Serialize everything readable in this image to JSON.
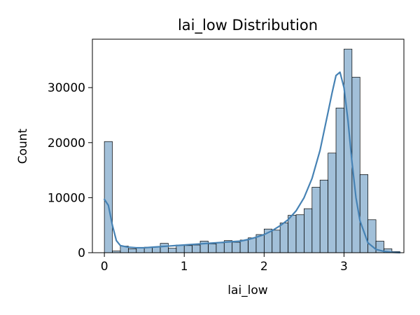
{
  "chart_data": {
    "type": "bar",
    "title": "lai_low Distribution",
    "xlabel": "lai_low",
    "ylabel": "Count",
    "xlim": [
      -0.15,
      3.75
    ],
    "ylim": [
      0,
      38800
    ],
    "xticks": [
      0,
      1,
      2,
      3
    ],
    "yticks": [
      0,
      10000,
      20000,
      30000
    ],
    "xtick_labels": [
      "0",
      "1",
      "2",
      "3"
    ],
    "ytick_labels": [
      "0",
      "10000",
      "20000",
      "30000"
    ],
    "bin_start": 0,
    "bin_width": 0.1,
    "histogram_counts": [
      20200,
      300,
      1200,
      700,
      900,
      1000,
      1000,
      1700,
      800,
      1400,
      1300,
      1400,
      2100,
      1600,
      1800,
      2200,
      1900,
      2300,
      2700,
      3300,
      4300,
      4100,
      5400,
      6800,
      6900,
      8000,
      11900,
      13200,
      18100,
      26300,
      37000,
      31900,
      14200,
      6000,
      2100,
      700,
      200
    ],
    "kde": {
      "x": [
        0.0,
        0.05,
        0.1,
        0.15,
        0.2,
        0.3,
        0.4,
        0.5,
        0.6,
        0.7,
        0.8,
        0.9,
        1.0,
        1.1,
        1.2,
        1.3,
        1.4,
        1.5,
        1.6,
        1.7,
        1.8,
        1.9,
        2.0,
        2.1,
        2.2,
        2.3,
        2.4,
        2.5,
        2.6,
        2.7,
        2.8,
        2.85,
        2.9,
        2.95,
        3.0,
        3.05,
        3.1,
        3.15,
        3.2,
        3.3,
        3.4,
        3.5,
        3.6,
        3.7
      ],
      "y": [
        9700,
        8600,
        5000,
        2200,
        1300,
        1000,
        900,
        900,
        1000,
        1100,
        1200,
        1300,
        1400,
        1500,
        1600,
        1700,
        1800,
        1900,
        2000,
        2100,
        2400,
        2800,
        3300,
        4000,
        4900,
        6000,
        7600,
        10000,
        13500,
        18600,
        25500,
        29000,
        32200,
        32800,
        30000,
        24000,
        16500,
        10000,
        5800,
        1800,
        600,
        250,
        80,
        20
      ]
    },
    "bar_color": "#4682b4",
    "grid": false
  }
}
